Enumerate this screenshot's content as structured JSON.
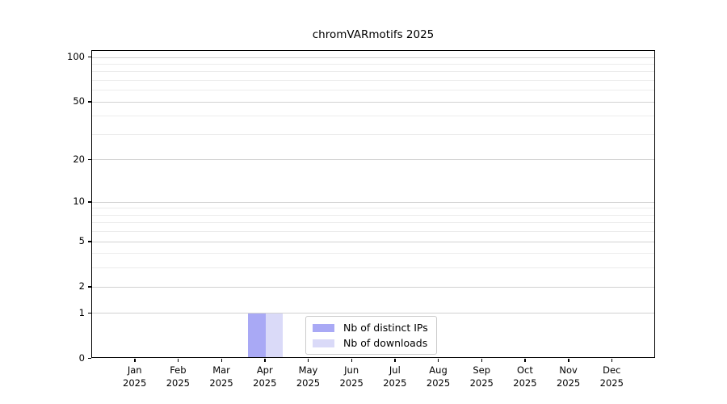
{
  "chart_data": {
    "type": "bar",
    "title": "chromVARmotifs 2025",
    "xlabel": "",
    "ylabel": "",
    "year_label": "2025",
    "categories": [
      "Jan",
      "Feb",
      "Mar",
      "Apr",
      "May",
      "Jun",
      "Jul",
      "Aug",
      "Sep",
      "Oct",
      "Nov",
      "Dec"
    ],
    "series": [
      {
        "name": "Nb of distinct IPs",
        "color": "#a9a9f5",
        "values": [
          0,
          0,
          0,
          1,
          0,
          0,
          0,
          0,
          0,
          0,
          0,
          0
        ]
      },
      {
        "name": "Nb of downloads",
        "color": "#dadaf8",
        "values": [
          0,
          0,
          0,
          1,
          0,
          0,
          0,
          0,
          0,
          0,
          0,
          0
        ]
      }
    ],
    "y_scale": "log1p",
    "y_ticks_major": [
      0,
      1,
      2,
      5,
      10,
      20,
      50,
      100
    ],
    "y_gridlines_minor": [
      3,
      4,
      6,
      7,
      8,
      9,
      30,
      40,
      60,
      70,
      80,
      90
    ],
    "ylim": [
      0,
      110
    ],
    "xlim": [
      -1,
      12
    ],
    "grid": true,
    "legend": {
      "position": "inside-bottom-center",
      "entries": [
        "Nb of distinct IPs",
        "Nb of downloads"
      ]
    }
  }
}
